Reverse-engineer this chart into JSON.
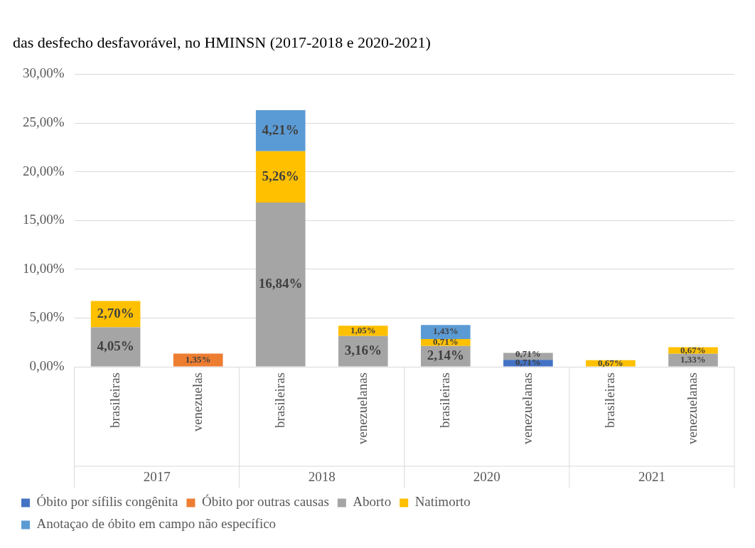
{
  "chart_data": {
    "type": "bar",
    "stacked": true,
    "title": "das desfecho desfavorável, no HMINSN (2017-2018 e 2020-2021)",
    "categories": [
      "brasileiras",
      "venezuelas",
      "brasileiras",
      "venezuelanas",
      "brasileiras",
      "venezuelanas",
      "brasileiras",
      "venezuelanas"
    ],
    "annotations": [
      "2017",
      "2018",
      "2020",
      "2021"
    ],
    "series": [
      {
        "name": "Óbito por sífilis congênita",
        "color": "#4472c4",
        "values": [
          null,
          null,
          null,
          null,
          null,
          0.71,
          null,
          null
        ],
        "value_labels": [
          null,
          null,
          null,
          null,
          null,
          "0,71%",
          null,
          null
        ]
      },
      {
        "name": "Óbito por outras causas",
        "color": "#ed7d31",
        "values": [
          null,
          1.35,
          null,
          null,
          null,
          null,
          null,
          null
        ],
        "value_labels": [
          null,
          "1,35%",
          null,
          null,
          null,
          null,
          null,
          null
        ]
      },
      {
        "name": "Aborto",
        "color": "#a5a5a5",
        "values": [
          4.05,
          null,
          16.84,
          3.16,
          2.14,
          0.71,
          null,
          1.33
        ],
        "value_labels": [
          "4,05%",
          null,
          "16,84%",
          "3,16%",
          "2,14%",
          "0,71%",
          null,
          "1,33%"
        ]
      },
      {
        "name": "Natimorto",
        "color": "#ffc000",
        "values": [
          2.7,
          null,
          5.26,
          1.05,
          0.71,
          null,
          0.67,
          0.67
        ],
        "value_labels": [
          "2,70%",
          null,
          "5,26%",
          "1,05%",
          "0,71%",
          null,
          "0,67%",
          "0,67%"
        ]
      },
      {
        "name": "Anotaçao de óbito em campo não específico",
        "color": "#5b9bd5",
        "values": [
          null,
          null,
          4.21,
          null,
          1.43,
          null,
          null,
          null
        ],
        "value_labels": [
          null,
          null,
          "4,21%",
          null,
          "1,43%",
          null,
          null,
          null
        ]
      }
    ],
    "ylim": [
      0,
      30
    ],
    "yticks": [
      {
        "value": 0,
        "label": "0,00%"
      },
      {
        "value": 5,
        "label": "5,00%"
      },
      {
        "value": 10,
        "label": "10,00%"
      },
      {
        "value": 15,
        "label": "15,00%"
      },
      {
        "value": 20,
        "label": "20,00%"
      },
      {
        "value": 25,
        "label": "25,00%"
      },
      {
        "value": 30,
        "label": "30,00%"
      }
    ],
    "grid": "y",
    "legend": "bottom"
  }
}
